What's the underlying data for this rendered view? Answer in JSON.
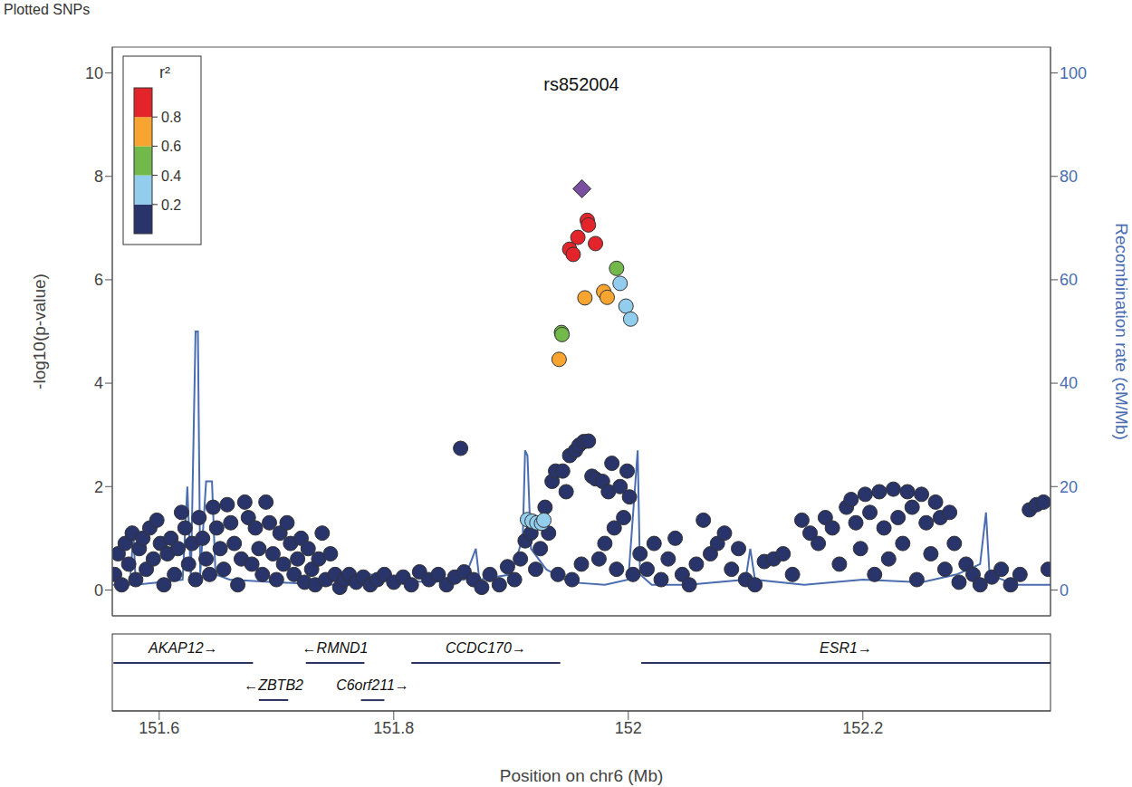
{
  "chart_data": {
    "type": "scatter",
    "title": "rs852004",
    "x_label": "Position on chr6 (Mb)",
    "y_label": "-log10(p-value)",
    "y2_label": "Recombination rate (cM/Mb)",
    "rug_label": "Plotted SNPs",
    "xlim": [
      151.56,
      152.36
    ],
    "xticks": [
      151.6,
      151.8,
      152,
      152.2
    ],
    "ylim": [
      -0.5,
      10.5
    ],
    "yticks": [
      0,
      2,
      4,
      6,
      8,
      10
    ],
    "y2lim": [
      -5,
      105
    ],
    "y2ticks": [
      0,
      20,
      40,
      60,
      80,
      100
    ],
    "ld_legend": {
      "title": "r²",
      "lim": [
        0,
        1
      ],
      "ticks": [
        0.2,
        0.4,
        0.6,
        0.8
      ]
    },
    "series": [
      {
        "ld_bin": [
          0,
          0.2
        ],
        "color": "#28346a",
        "marker": "circle",
        "points": [
          [
            151.562,
            0.3
          ],
          [
            151.565,
            0.7
          ],
          [
            151.568,
            0.1
          ],
          [
            151.571,
            0.9
          ],
          [
            151.574,
            0.5
          ],
          [
            151.577,
            1.1
          ],
          [
            151.58,
            0.2
          ],
          [
            151.583,
            0.8
          ],
          [
            151.586,
            1.0
          ],
          [
            151.589,
            0.4
          ],
          [
            151.592,
            1.2
          ],
          [
            151.595,
            0.6
          ],
          [
            151.598,
            1.35
          ],
          [
            151.601,
            0.9
          ],
          [
            151.604,
            0.1
          ],
          [
            151.607,
            0.7
          ],
          [
            151.61,
            1.0
          ],
          [
            151.613,
            0.3
          ],
          [
            151.616,
            0.8
          ],
          [
            151.619,
            1.5
          ],
          [
            151.622,
            1.2
          ],
          [
            151.625,
            0.5
          ],
          [
            151.628,
            0.9
          ],
          [
            151.631,
            0.2
          ],
          [
            151.634,
            1.4
          ],
          [
            151.637,
            1.0
          ],
          [
            151.64,
            0.6
          ],
          [
            151.643,
            0.3
          ],
          [
            151.646,
            1.6
          ],
          [
            151.649,
            1.2
          ],
          [
            151.652,
            0.8
          ],
          [
            151.655,
            0.4
          ],
          [
            151.658,
            1.65
          ],
          [
            151.661,
            1.3
          ],
          [
            151.664,
            0.9
          ],
          [
            151.667,
            0.1
          ],
          [
            151.67,
            0.6
          ],
          [
            151.673,
            1.7
          ],
          [
            151.676,
            1.4
          ],
          [
            151.679,
            0.5
          ],
          [
            151.682,
            1.2
          ],
          [
            151.685,
            0.8
          ],
          [
            151.688,
            0.3
          ],
          [
            151.691,
            1.7
          ],
          [
            151.694,
            1.3
          ],
          [
            151.697,
            0.7
          ],
          [
            151.7,
            0.2
          ],
          [
            151.703,
            1.1
          ],
          [
            151.706,
            0.5
          ],
          [
            151.709,
            1.3
          ],
          [
            151.712,
            0.9
          ],
          [
            151.715,
            0.3
          ],
          [
            151.718,
            0.6
          ],
          [
            151.721,
            1.0
          ],
          [
            151.724,
            0.15
          ],
          [
            151.727,
            0.8
          ],
          [
            151.73,
            0.4
          ],
          [
            151.733,
            0.1
          ],
          [
            151.736,
            0.6
          ],
          [
            151.739,
            1.1
          ],
          [
            151.742,
            0.2
          ],
          [
            151.746,
            0.7
          ],
          [
            151.75,
            0.3
          ],
          [
            151.754,
            0.05
          ],
          [
            151.758,
            0.2
          ],
          [
            151.762,
            0.3
          ],
          [
            151.768,
            0.15
          ],
          [
            151.774,
            0.25
          ],
          [
            151.78,
            0.1
          ],
          [
            151.786,
            0.2
          ],
          [
            151.792,
            0.3
          ],
          [
            151.8,
            0.15
          ],
          [
            151.808,
            0.25
          ],
          [
            151.815,
            0.1
          ],
          [
            151.822,
            0.35
          ],
          [
            151.83,
            0.2
          ],
          [
            151.838,
            0.3
          ],
          [
            151.845,
            0.1
          ],
          [
            151.852,
            0.25
          ],
          [
            151.857,
            2.74
          ],
          [
            151.86,
            0.35
          ],
          [
            151.868,
            0.2
          ],
          [
            151.875,
            0.05
          ],
          [
            151.882,
            0.3
          ],
          [
            151.89,
            0.1
          ],
          [
            151.897,
            0.45
          ],
          [
            151.903,
            0.2
          ],
          [
            151.908,
            0.6
          ],
          [
            151.912,
            0.95
          ],
          [
            151.917,
            1.1
          ],
          [
            151.921,
            0.4
          ],
          [
            151.925,
            0.8
          ],
          [
            151.929,
            1.6
          ],
          [
            151.932,
            1.1
          ],
          [
            151.935,
            2.1
          ],
          [
            151.938,
            2.3
          ],
          [
            151.94,
            0.3
          ],
          [
            151.944,
            2.3
          ],
          [
            151.947,
            1.9
          ],
          [
            151.95,
            2.6
          ],
          [
            151.952,
            0.2
          ],
          [
            151.955,
            2.7
          ],
          [
            151.958,
            2.8
          ],
          [
            151.96,
            0.5
          ],
          [
            151.962,
            2.87
          ],
          [
            151.966,
            2.88
          ],
          [
            151.969,
            2.2
          ],
          [
            151.972,
            2.15
          ],
          [
            151.975,
            0.6
          ],
          [
            151.978,
            2.1
          ],
          [
            151.98,
            0.9
          ],
          [
            151.983,
            1.9
          ],
          [
            151.986,
            2.45
          ],
          [
            151.988,
            1.2
          ],
          [
            151.99,
            0.4
          ],
          [
            151.993,
            2.0
          ],
          [
            151.996,
            1.4
          ],
          [
            151.999,
            2.3
          ],
          [
            152.001,
            1.8
          ],
          [
            152.004,
            0.3
          ],
          [
            152.01,
            0.7
          ],
          [
            152.016,
            0.4
          ],
          [
            152.022,
            0.9
          ],
          [
            152.028,
            0.2
          ],
          [
            152.034,
            0.6
          ],
          [
            152.04,
            1.0
          ],
          [
            152.046,
            0.3
          ],
          [
            152.052,
            0.1
          ],
          [
            152.058,
            0.5
          ],
          [
            152.064,
            1.35
          ],
          [
            152.07,
            0.7
          ],
          [
            152.076,
            0.9
          ],
          [
            152.082,
            1.1
          ],
          [
            152.088,
            0.4
          ],
          [
            152.094,
            0.8
          ],
          [
            152.1,
            0.2
          ],
          [
            152.108,
            0.1
          ],
          [
            152.116,
            0.55
          ],
          [
            152.124,
            0.6
          ],
          [
            152.132,
            0.7
          ],
          [
            152.14,
            0.3
          ],
          [
            152.148,
            1.35
          ],
          [
            152.155,
            1.1
          ],
          [
            152.162,
            0.9
          ],
          [
            152.168,
            1.4
          ],
          [
            152.174,
            1.2
          ],
          [
            152.18,
            0.5
          ],
          [
            152.186,
            1.6
          ],
          [
            152.19,
            1.75
          ],
          [
            152.194,
            1.3
          ],
          [
            152.198,
            0.8
          ],
          [
            152.202,
            1.85
          ],
          [
            152.206,
            1.5
          ],
          [
            152.21,
            0.3
          ],
          [
            152.214,
            1.9
          ],
          [
            152.218,
            1.2
          ],
          [
            152.222,
            0.6
          ],
          [
            152.226,
            1.95
          ],
          [
            152.23,
            1.4
          ],
          [
            152.234,
            0.9
          ],
          [
            152.238,
            1.9
          ],
          [
            152.242,
            1.6
          ],
          [
            152.246,
            0.2
          ],
          [
            152.25,
            1.85
          ],
          [
            152.254,
            1.3
          ],
          [
            152.258,
            0.7
          ],
          [
            152.262,
            1.7
          ],
          [
            152.266,
            1.4
          ],
          [
            152.27,
            0.4
          ],
          [
            152.274,
            1.5
          ],
          [
            152.278,
            0.9
          ],
          [
            152.282,
            0.15
          ],
          [
            152.288,
            0.5
          ],
          [
            152.294,
            0.3
          ],
          [
            152.3,
            0.1
          ],
          [
            152.31,
            0.25
          ],
          [
            152.318,
            0.4
          ],
          [
            152.326,
            0.1
          ],
          [
            152.334,
            0.3
          ],
          [
            152.342,
            1.55
          ],
          [
            152.348,
            1.65
          ],
          [
            152.354,
            1.7
          ],
          [
            152.358,
            0.4
          ]
        ]
      },
      {
        "ld_bin": [
          0.2,
          0.4
        ],
        "color": "#92cdee",
        "marker": "circle",
        "points": [
          [
            151.993,
            5.93
          ],
          [
            151.998,
            5.49
          ],
          [
            152.002,
            5.24
          ],
          [
            151.914,
            1.36
          ],
          [
            151.918,
            1.33
          ],
          [
            151.922,
            1.3
          ],
          [
            151.926,
            1.29
          ],
          [
            151.928,
            1.35
          ]
        ]
      },
      {
        "ld_bin": [
          0.4,
          0.6
        ],
        "color": "#72b84a",
        "marker": "circle",
        "points": [
          [
            151.99,
            6.22
          ],
          [
            151.943,
            4.98
          ],
          [
            151.9435,
            4.94
          ]
        ]
      },
      {
        "ld_bin": [
          0.6,
          0.8
        ],
        "color": "#f7a530",
        "marker": "circle",
        "points": [
          [
            151.963,
            5.65
          ],
          [
            151.979,
            5.77
          ],
          [
            151.982,
            5.66
          ],
          [
            151.941,
            4.46
          ]
        ]
      },
      {
        "ld_bin": [
          0.8,
          1
        ],
        "color": "#e3242b",
        "marker": "circle",
        "points": [
          [
            151.965,
            7.15
          ],
          [
            151.966,
            7.06
          ],
          [
            151.957,
            6.82
          ],
          [
            151.95,
            6.59
          ],
          [
            151.953,
            6.49
          ],
          [
            151.972,
            6.7
          ]
        ]
      },
      {
        "color": "#7b4fa0",
        "marker": "diamond",
        "points": [
          [
            151.9605,
            7.76
          ]
        ]
      }
    ],
    "recombination": {
      "axis": "y2",
      "type": "line",
      "color": "#4a6db0",
      "points": [
        [
          151.56,
          1
        ],
        [
          151.575,
          1
        ],
        [
          151.578,
          11
        ],
        [
          151.58,
          1
        ],
        [
          151.6,
          1.5
        ],
        [
          151.62,
          2
        ],
        [
          151.624,
          20
        ],
        [
          151.627,
          2
        ],
        [
          151.631,
          50
        ],
        [
          151.633,
          50
        ],
        [
          151.635,
          3
        ],
        [
          151.64,
          21
        ],
        [
          151.645,
          21
        ],
        [
          151.648,
          3
        ],
        [
          151.66,
          2
        ],
        [
          151.7,
          1.5
        ],
        [
          151.75,
          1
        ],
        [
          151.78,
          3
        ],
        [
          151.8,
          2
        ],
        [
          151.83,
          1.5
        ],
        [
          151.86,
          2
        ],
        [
          151.87,
          8
        ],
        [
          151.873,
          2
        ],
        [
          151.9,
          3
        ],
        [
          151.91,
          10
        ],
        [
          151.912,
          27
        ],
        [
          151.914,
          26
        ],
        [
          151.917,
          8
        ],
        [
          151.93,
          4
        ],
        [
          151.95,
          1.5
        ],
        [
          151.98,
          1
        ],
        [
          152.0,
          2
        ],
        [
          152.008,
          27
        ],
        [
          152.01,
          3
        ],
        [
          152.02,
          1
        ],
        [
          152.05,
          1
        ],
        [
          152.1,
          2
        ],
        [
          152.104,
          8
        ],
        [
          152.108,
          2
        ],
        [
          152.15,
          1
        ],
        [
          152.2,
          2
        ],
        [
          152.25,
          1.5
        ],
        [
          152.28,
          3
        ],
        [
          152.3,
          5
        ],
        [
          152.305,
          15
        ],
        [
          152.308,
          3
        ],
        [
          152.33,
          1
        ],
        [
          152.36,
          1
        ]
      ]
    },
    "genes": [
      {
        "label": "AKAP12→",
        "start": 151.561,
        "end": 151.68
      },
      {
        "label": "←ZBTB2",
        "start": 151.685,
        "end": 151.71
      },
      {
        "label": "←RMND1",
        "start": 151.725,
        "end": 151.775
      },
      {
        "label": "C6orf211→",
        "start": 151.772,
        "end": 151.792
      },
      {
        "label": "CCDC170→",
        "start": 151.815,
        "end": 151.942
      },
      {
        "label": "ESR1→",
        "start": 152.011,
        "end": 152.45
      }
    ]
  }
}
